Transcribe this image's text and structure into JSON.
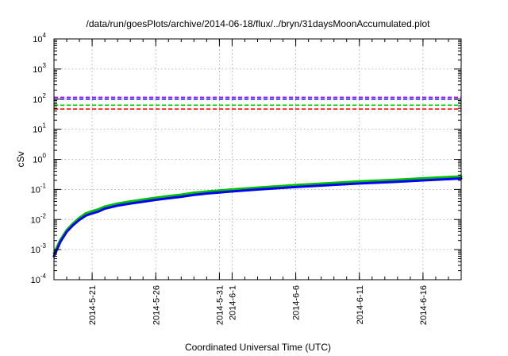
{
  "chart_data": {
    "type": "line",
    "title": "/data/run/goesPlots/archive/2014-06-18/flux/../bryn/31daysMoonAccumulated.plot",
    "xlabel": "Coordinated Universal Time (UTC)",
    "ylabel": "cSv",
    "y_scale": "log",
    "ylim": [
      0.0001,
      10000
    ],
    "y_ticks": [
      {
        "value": 0.0001,
        "base": "10",
        "exp": "-4"
      },
      {
        "value": 0.001,
        "base": "10",
        "exp": "-3"
      },
      {
        "value": 0.01,
        "base": "10",
        "exp": "-2"
      },
      {
        "value": 0.1,
        "base": "10",
        "exp": "-1"
      },
      {
        "value": 1,
        "base": "10",
        "exp": "0"
      },
      {
        "value": 10,
        "base": "10",
        "exp": "1"
      },
      {
        "value": 100,
        "base": "10",
        "exp": "2"
      },
      {
        "value": 1000,
        "base": "10",
        "exp": "3"
      },
      {
        "value": 10000,
        "base": "10",
        "exp": "4"
      }
    ],
    "xlim": [
      "2014-05-18",
      "2014-06-19"
    ],
    "x_ticks": [
      {
        "date": "2014-05-21",
        "label": "2014-5-21"
      },
      {
        "date": "2014-05-26",
        "label": "2014-5-26"
      },
      {
        "date": "2014-05-31",
        "label": "2014-5-31"
      },
      {
        "date": "2014-06-01",
        "label": "2014-6-1"
      },
      {
        "date": "2014-06-06",
        "label": "2014-6-6"
      },
      {
        "date": "2014-06-11",
        "label": "2014-6-11"
      },
      {
        "date": "2014-06-16",
        "label": "2014-6-16"
      }
    ],
    "grid": true,
    "legend": false,
    "thresholds": [
      {
        "value": 115,
        "color": "#9400d3"
      },
      {
        "value": 100,
        "color": "#0000ff"
      },
      {
        "value": 63,
        "color": "#00c000"
      },
      {
        "value": 47,
        "color": "#ff0000"
      }
    ],
    "series": [
      {
        "color": "#00c000",
        "points": [
          [
            "2014-05-18",
            0.00075
          ],
          [
            "2014-05-18T12:00",
            0.0021
          ],
          [
            "2014-05-19",
            0.0045
          ],
          [
            "2014-05-19T12:00",
            0.0075
          ],
          [
            "2014-05-20",
            0.0115
          ],
          [
            "2014-05-20T12:00",
            0.016
          ],
          [
            "2014-05-21",
            0.019
          ],
          [
            "2014-05-21T12:00",
            0.022
          ],
          [
            "2014-05-22",
            0.027
          ],
          [
            "2014-05-23",
            0.034
          ],
          [
            "2014-05-24",
            0.04
          ],
          [
            "2014-05-25",
            0.046
          ],
          [
            "2014-05-26",
            0.053
          ],
          [
            "2014-05-27",
            0.06
          ],
          [
            "2014-05-28",
            0.067
          ],
          [
            "2014-05-29",
            0.078
          ],
          [
            "2014-05-30",
            0.085
          ],
          [
            "2014-05-31",
            0.092
          ],
          [
            "2014-06-01",
            0.1
          ],
          [
            "2014-06-03",
            0.115
          ],
          [
            "2014-06-06",
            0.14
          ],
          [
            "2014-06-09",
            0.165
          ],
          [
            "2014-06-11",
            0.185
          ],
          [
            "2014-06-14",
            0.21
          ],
          [
            "2014-06-16",
            0.235
          ],
          [
            "2014-06-19",
            0.27
          ]
        ]
      },
      {
        "color": "#0000ff",
        "points": [
          [
            "2014-05-18",
            0.0006
          ],
          [
            "2014-05-18T12:00",
            0.0018
          ],
          [
            "2014-05-19",
            0.0039
          ],
          [
            "2014-05-19T12:00",
            0.0065
          ],
          [
            "2014-05-20",
            0.0098
          ],
          [
            "2014-05-20T12:00",
            0.0135
          ],
          [
            "2014-05-21",
            0.016
          ],
          [
            "2014-05-21T12:00",
            0.0185
          ],
          [
            "2014-05-22",
            0.023
          ],
          [
            "2014-05-23",
            0.029
          ],
          [
            "2014-05-24",
            0.034
          ],
          [
            "2014-05-25",
            0.039
          ],
          [
            "2014-05-26",
            0.045
          ],
          [
            "2014-05-27",
            0.051
          ],
          [
            "2014-05-28",
            0.057
          ],
          [
            "2014-05-29",
            0.066
          ],
          [
            "2014-05-30",
            0.073
          ],
          [
            "2014-05-31",
            0.079
          ],
          [
            "2014-06-01",
            0.086
          ],
          [
            "2014-06-03",
            0.099
          ],
          [
            "2014-06-06",
            0.12
          ],
          [
            "2014-06-09",
            0.142
          ],
          [
            "2014-06-11",
            0.158
          ],
          [
            "2014-06-14",
            0.18
          ],
          [
            "2014-06-16",
            0.2
          ],
          [
            "2014-06-19",
            0.23
          ]
        ]
      }
    ]
  }
}
